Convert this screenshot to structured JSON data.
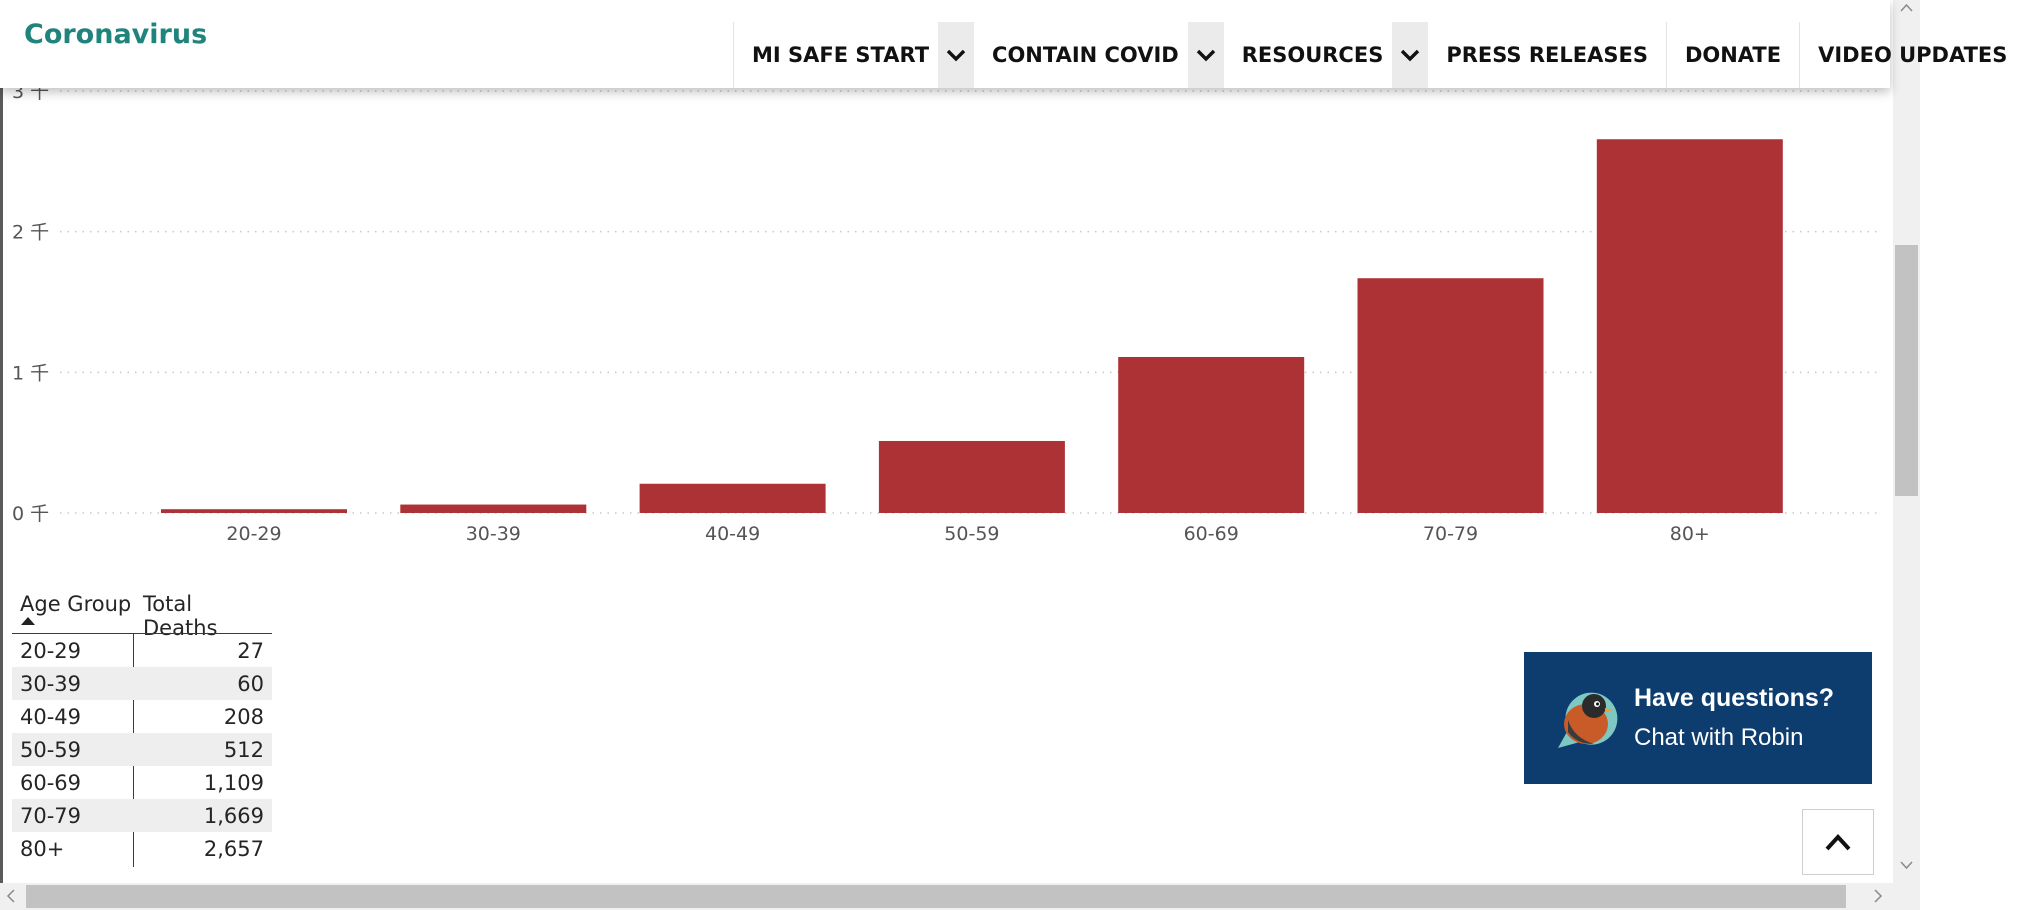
{
  "header": {
    "brand": "Coronavirus",
    "nav": [
      {
        "label": "MI SAFE START",
        "has_dropdown": true
      },
      {
        "label": "CONTAIN COVID",
        "has_dropdown": true
      },
      {
        "label": "RESOURCES",
        "has_dropdown": true
      },
      {
        "label": "PRESS RELEASES",
        "has_dropdown": false
      },
      {
        "label": "DONATE",
        "has_dropdown": false
      },
      {
        "label": "VIDEO UPDATES",
        "has_dropdown": false
      }
    ]
  },
  "chart_data": {
    "type": "bar",
    "title": "",
    "xlabel": "",
    "ylabel": "",
    "categories": [
      "20-29",
      "30-39",
      "40-49",
      "50-59",
      "60-69",
      "70-79",
      "80+"
    ],
    "values": [
      27,
      60,
      208,
      512,
      1109,
      1669,
      2657
    ],
    "yticks": [
      {
        "value": 0,
        "label": "0 千"
      },
      {
        "value": 1000,
        "label": "1 千"
      },
      {
        "value": 2000,
        "label": "2 千"
      },
      {
        "value": 3000,
        "label": "3 千"
      }
    ],
    "ylim": [
      0,
      3000
    ],
    "grid": "dotted horizontal",
    "bar_color": "#ad3236"
  },
  "table": {
    "headers": {
      "age_group": "Age Group",
      "total_deaths": "Total Deaths"
    },
    "sort_column": "Age Group",
    "rows": [
      {
        "age": "20-29",
        "deaths": "27"
      },
      {
        "age": "30-39",
        "deaths": "60"
      },
      {
        "age": "40-49",
        "deaths": "208"
      },
      {
        "age": "50-59",
        "deaths": "512"
      },
      {
        "age": "60-69",
        "deaths": "1,109"
      },
      {
        "age": "70-79",
        "deaths": "1,669"
      },
      {
        "age": "80+",
        "deaths": "2,657"
      }
    ]
  },
  "chat": {
    "question": "Have questions?",
    "cta": "Chat with Robin",
    "bg_color": "#0d3c6e"
  },
  "colors": {
    "brand": "#21847c",
    "bar": "#ad3236",
    "table_line": "#1e3a8a"
  }
}
